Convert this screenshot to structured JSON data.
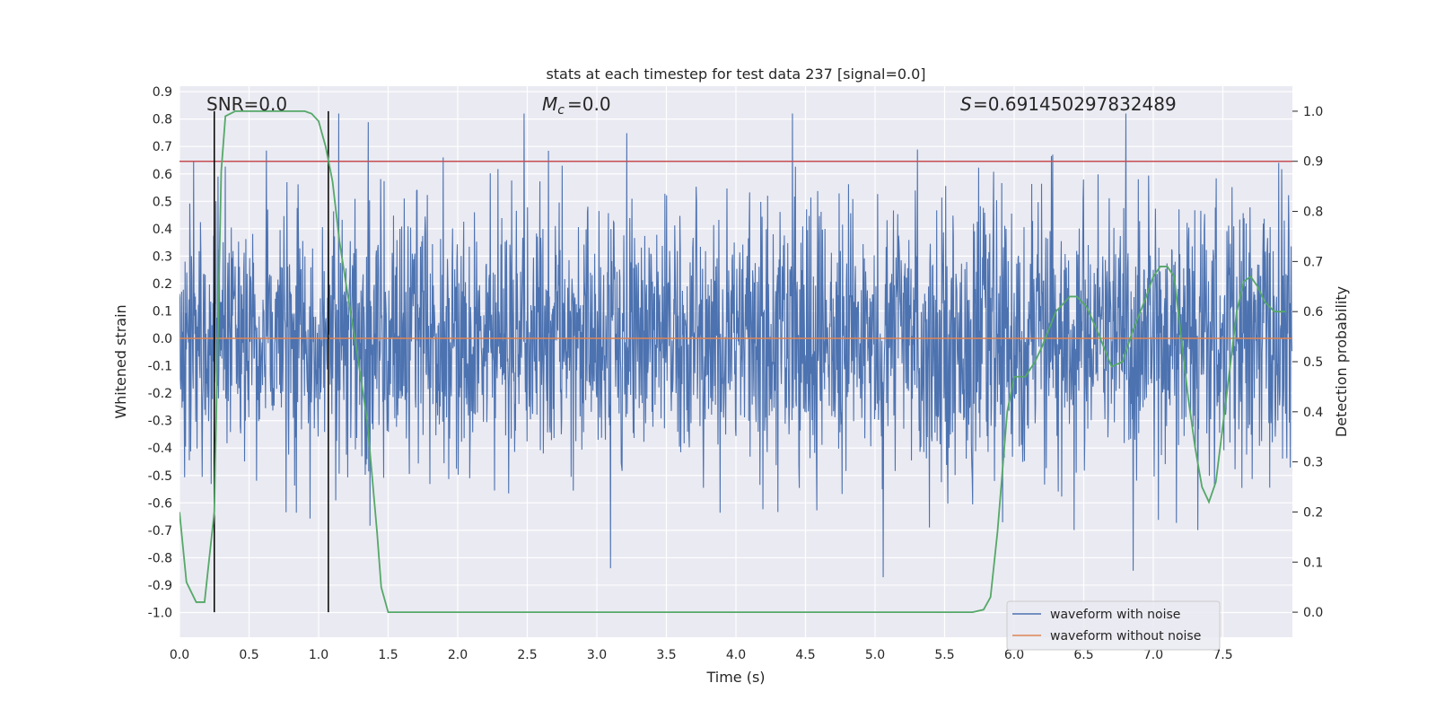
{
  "chart_data": {
    "type": "line",
    "title": "stats at each timestep for test data 237 [signal=0.0]",
    "xlabel": "Time (s)",
    "ylabel": "Whitened strain",
    "y2label": "Detection probability",
    "xlim": [
      0.0,
      8.0
    ],
    "ylim": [
      -1.09,
      0.92
    ],
    "y2lim": [
      -0.05,
      1.05
    ],
    "x_ticks": [
      "0.0",
      "0.5",
      "1.0",
      "1.5",
      "2.0",
      "2.5",
      "3.0",
      "3.5",
      "4.0",
      "4.5",
      "5.0",
      "5.5",
      "6.0",
      "6.5",
      "7.0",
      "7.5"
    ],
    "y_ticks": [
      "0.9",
      "0.8",
      "0.7",
      "0.6",
      "0.5",
      "0.4",
      "0.3",
      "0.2",
      "0.1",
      "0.0",
      "-0.1",
      "-0.2",
      "-0.3",
      "-0.4",
      "-0.5",
      "-0.6",
      "-0.7",
      "-0.8",
      "-0.9",
      "-1.0"
    ],
    "y2_ticks": [
      "1.0",
      "0.9",
      "0.8",
      "0.7",
      "0.6",
      "0.5",
      "0.4",
      "0.3",
      "0.2",
      "0.1",
      "0.0"
    ],
    "grid": true,
    "legend_position": "lower-right",
    "annotations": {
      "snr": "SNR=0.0",
      "mc": "=0.0",
      "s": "=0.691450297832489"
    },
    "threshold": {
      "value": 0.9,
      "axis": "right",
      "color": "#c44e52"
    },
    "vertical_markers": [
      0.25,
      1.07
    ],
    "series": [
      {
        "name": "waveform with noise",
        "color": "#4c72b0",
        "kind": "noise",
        "range": [
          -1.0,
          0.82
        ]
      },
      {
        "name": "waveform without noise",
        "color": "#dd8452",
        "kind": "flat",
        "value": 0.0
      },
      {
        "name": "",
        "color": "#55a868",
        "axis": "right",
        "x": [
          0.0,
          0.05,
          0.12,
          0.18,
          0.25,
          0.3,
          0.33,
          0.4,
          0.5,
          0.6,
          0.7,
          0.8,
          0.9,
          0.95,
          1.0,
          1.05,
          1.1,
          1.15,
          1.2,
          1.27,
          1.35,
          1.42,
          1.45,
          1.5,
          2.0,
          3.0,
          4.0,
          5.0,
          5.5,
          5.7,
          5.78,
          5.83,
          5.88,
          5.95,
          6.0,
          6.08,
          6.15,
          6.2,
          6.3,
          6.4,
          6.45,
          6.52,
          6.6,
          6.7,
          6.78,
          6.85,
          6.95,
          7.0,
          7.05,
          7.1,
          7.15,
          7.2,
          7.25,
          7.3,
          7.35,
          7.4,
          7.45,
          7.53,
          7.6,
          7.65,
          7.7,
          7.75,
          7.8,
          7.87,
          7.95
        ],
        "values": [
          0.2,
          0.06,
          0.02,
          0.02,
          0.2,
          0.88,
          0.99,
          1.0,
          1.0,
          1.0,
          1.0,
          1.0,
          1.0,
          0.995,
          0.98,
          0.93,
          0.86,
          0.74,
          0.65,
          0.53,
          0.38,
          0.16,
          0.05,
          0.0,
          0.0,
          0.0,
          0.0,
          0.0,
          0.0,
          0.0,
          0.005,
          0.03,
          0.16,
          0.4,
          0.47,
          0.47,
          0.5,
          0.53,
          0.6,
          0.63,
          0.63,
          0.61,
          0.56,
          0.49,
          0.5,
          0.56,
          0.63,
          0.67,
          0.69,
          0.69,
          0.67,
          0.55,
          0.43,
          0.33,
          0.25,
          0.22,
          0.26,
          0.44,
          0.6,
          0.66,
          0.67,
          0.65,
          0.62,
          0.6,
          0.6
        ]
      }
    ]
  }
}
